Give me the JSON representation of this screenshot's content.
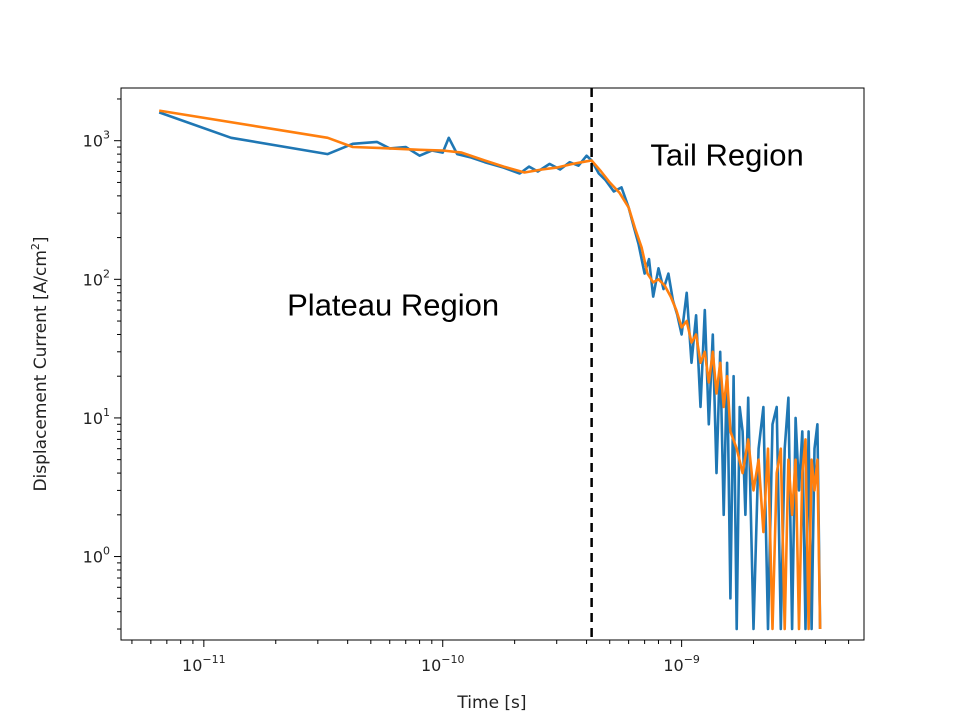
{
  "chart_data": {
    "type": "line",
    "title": "",
    "xlabel": "Time [s]",
    "ylabel_main": "Displacement Current [A/cm",
    "ylabel_sup": "2",
    "ylabel_tail": "]",
    "xscale": "log",
    "yscale": "log",
    "xlim": [
      4.5e-12,
      5.8e-09
    ],
    "ylim": [
      0.25,
      2400
    ],
    "grid": false,
    "legend": "none",
    "x_ticks": [
      {
        "value": 1e-11,
        "base": "10",
        "exp": "−11"
      },
      {
        "value": 1e-10,
        "base": "10",
        "exp": "−10"
      },
      {
        "value": 1e-09,
        "base": "10",
        "exp": "−9"
      }
    ],
    "y_ticks": [
      {
        "value": 1,
        "base": "10",
        "exp": "0"
      },
      {
        "value": 10,
        "base": "10",
        "exp": "1"
      },
      {
        "value": 100,
        "base": "10",
        "exp": "2"
      },
      {
        "value": 1000,
        "base": "10",
        "exp": "3"
      }
    ],
    "divider_x": 4.2e-10,
    "annotations": [
      {
        "text": "Tail Region",
        "x": 1.55e-09,
        "y": 780
      },
      {
        "text": "Plateau Region",
        "x": 6.2e-11,
        "y": 65
      }
    ],
    "series": [
      {
        "color": "#1f77b4",
        "points": [
          [
            6.5e-12,
            1600
          ],
          [
            1.3e-11,
            1050
          ],
          [
            3.3e-11,
            800
          ],
          [
            4.2e-11,
            950
          ],
          [
            5.3e-11,
            980
          ],
          [
            6e-11,
            880
          ],
          [
            7e-11,
            900
          ],
          [
            8e-11,
            780
          ],
          [
            9e-11,
            850
          ],
          [
            1e-10,
            820
          ],
          [
            1.06e-10,
            1050
          ],
          [
            1.15e-10,
            800
          ],
          [
            1.3e-10,
            760
          ],
          [
            1.5e-10,
            700
          ],
          [
            1.8e-10,
            640
          ],
          [
            2.1e-10,
            580
          ],
          [
            2.3e-10,
            650
          ],
          [
            2.5e-10,
            600
          ],
          [
            2.8e-10,
            680
          ],
          [
            3.1e-10,
            620
          ],
          [
            3.4e-10,
            700
          ],
          [
            3.7e-10,
            660
          ],
          [
            4e-10,
            780
          ],
          [
            4.2e-10,
            720
          ],
          [
            4.5e-10,
            580
          ],
          [
            4.8e-10,
            520
          ],
          [
            5.2e-10,
            430
          ],
          [
            5.6e-10,
            460
          ],
          [
            6e-10,
            330
          ],
          [
            6.3e-10,
            240
          ],
          [
            6.6e-10,
            180
          ],
          [
            7e-10,
            110
          ],
          [
            7.3e-10,
            140
          ],
          [
            7.6e-10,
            75
          ],
          [
            8e-10,
            120
          ],
          [
            8.4e-10,
            85
          ],
          [
            8.8e-10,
            110
          ],
          [
            9.2e-10,
            70
          ],
          [
            9.6e-10,
            55
          ],
          [
            1e-09,
            40
          ],
          [
            1.05e-09,
            80
          ],
          [
            1.1e-09,
            25
          ],
          [
            1.15e-09,
            55
          ],
          [
            1.2e-09,
            12
          ],
          [
            1.25e-09,
            60
          ],
          [
            1.3e-09,
            9
          ],
          [
            1.35e-09,
            40
          ],
          [
            1.4e-09,
            4
          ],
          [
            1.45e-09,
            30
          ],
          [
            1.5e-09,
            2
          ],
          [
            1.55e-09,
            25
          ],
          [
            1.6e-09,
            0.5
          ],
          [
            1.65e-09,
            20
          ],
          [
            1.7e-09,
            0.3
          ],
          [
            1.75e-09,
            12
          ],
          [
            1.8e-09,
            8
          ],
          [
            1.85e-09,
            2
          ],
          [
            1.9e-09,
            14
          ],
          [
            2e-09,
            0.3
          ],
          [
            2.1e-09,
            6
          ],
          [
            2.2e-09,
            12
          ],
          [
            2.3e-09,
            0.3
          ],
          [
            2.4e-09,
            9
          ],
          [
            2.5e-09,
            12
          ],
          [
            2.6e-09,
            0.3
          ],
          [
            2.7e-09,
            6
          ],
          [
            2.8e-09,
            14
          ],
          [
            2.9e-09,
            0.3
          ],
          [
            3e-09,
            10
          ],
          [
            3.1e-09,
            3
          ],
          [
            3.2e-09,
            8
          ],
          [
            3.3e-09,
            0.3
          ],
          [
            3.4e-09,
            8
          ],
          [
            3.5e-09,
            0.3
          ],
          [
            3.6e-09,
            6
          ],
          [
            3.7e-09,
            9
          ],
          [
            3.8e-09,
            0.3
          ]
        ]
      },
      {
        "color": "#ff7f0e",
        "points": [
          [
            6.5e-12,
            1650
          ],
          [
            3.3e-11,
            1050
          ],
          [
            4.2e-11,
            900
          ],
          [
            6e-11,
            880
          ],
          [
            8e-11,
            860
          ],
          [
            1e-10,
            850
          ],
          [
            1.2e-10,
            820
          ],
          [
            1.5e-10,
            720
          ],
          [
            1.8e-10,
            650
          ],
          [
            2.2e-10,
            590
          ],
          [
            2.6e-10,
            620
          ],
          [
            3e-10,
            640
          ],
          [
            3.5e-10,
            680
          ],
          [
            4e-10,
            710
          ],
          [
            4.2e-10,
            720
          ],
          [
            4.6e-10,
            600
          ],
          [
            5e-10,
            500
          ],
          [
            5.5e-10,
            420
          ],
          [
            6e-10,
            330
          ],
          [
            6.4e-10,
            230
          ],
          [
            6.8e-10,
            170
          ],
          [
            7.2e-10,
            110
          ],
          [
            7.6e-10,
            95
          ],
          [
            8e-10,
            100
          ],
          [
            8.5e-10,
            90
          ],
          [
            9e-10,
            75
          ],
          [
            9.5e-10,
            60
          ],
          [
            1e-09,
            45
          ],
          [
            1.05e-09,
            50
          ],
          [
            1.1e-09,
            35
          ],
          [
            1.15e-09,
            40
          ],
          [
            1.2e-09,
            25
          ],
          [
            1.25e-09,
            30
          ],
          [
            1.3e-09,
            18
          ],
          [
            1.35e-09,
            30
          ],
          [
            1.4e-09,
            15
          ],
          [
            1.45e-09,
            25
          ],
          [
            1.5e-09,
            12
          ],
          [
            1.55e-09,
            20
          ],
          [
            1.6e-09,
            8
          ],
          [
            1.7e-09,
            6
          ],
          [
            1.8e-09,
            4
          ],
          [
            1.9e-09,
            7
          ],
          [
            2e-09,
            3
          ],
          [
            2.1e-09,
            5
          ],
          [
            2.2e-09,
            1.5
          ],
          [
            2.3e-09,
            6
          ],
          [
            2.4e-09,
            0.3
          ],
          [
            2.5e-09,
            4
          ],
          [
            2.6e-09,
            6
          ],
          [
            2.7e-09,
            0.3
          ],
          [
            2.8e-09,
            5
          ],
          [
            2.9e-09,
            2
          ],
          [
            3e-09,
            5
          ],
          [
            3.1e-09,
            0.3
          ],
          [
            3.2e-09,
            4
          ],
          [
            3.3e-09,
            7
          ],
          [
            3.4e-09,
            0.3
          ],
          [
            3.5e-09,
            5
          ],
          [
            3.6e-09,
            3
          ],
          [
            3.7e-09,
            5
          ],
          [
            3.8e-09,
            0.3
          ]
        ]
      }
    ]
  }
}
